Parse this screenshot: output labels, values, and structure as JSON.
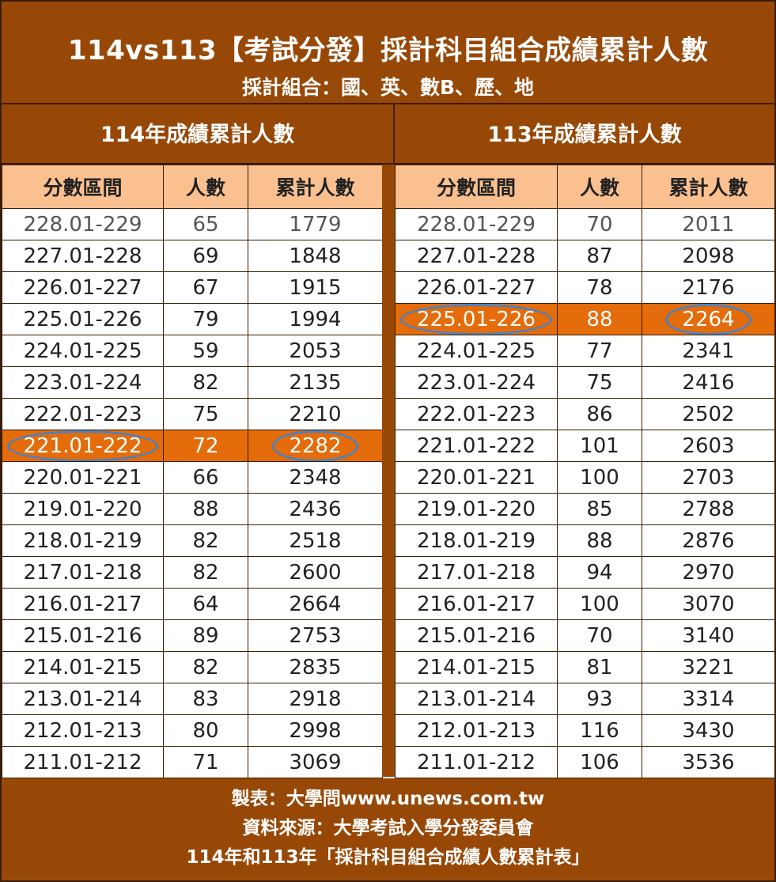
{
  "header": {
    "title": "114vs113【考試分發】採計科目組合成績累計人數",
    "subtitle": "採計組合：國、英、數B、歷、地"
  },
  "columns": [
    "分數區間",
    "人數",
    "累計人數"
  ],
  "tables": [
    {
      "year_heading": "114年成績累計人數",
      "highlight_index": 7,
      "rows": [
        [
          "228.01-229",
          "65",
          "1779"
        ],
        [
          "227.01-228",
          "69",
          "1848"
        ],
        [
          "226.01-227",
          "67",
          "1915"
        ],
        [
          "225.01-226",
          "79",
          "1994"
        ],
        [
          "224.01-225",
          "59",
          "2053"
        ],
        [
          "223.01-224",
          "82",
          "2135"
        ],
        [
          "222.01-223",
          "75",
          "2210"
        ],
        [
          "221.01-222",
          "72",
          "2282"
        ],
        [
          "220.01-221",
          "66",
          "2348"
        ],
        [
          "219.01-220",
          "88",
          "2436"
        ],
        [
          "218.01-219",
          "82",
          "2518"
        ],
        [
          "217.01-218",
          "82",
          "2600"
        ],
        [
          "216.01-217",
          "64",
          "2664"
        ],
        [
          "215.01-216",
          "89",
          "2753"
        ],
        [
          "214.01-215",
          "82",
          "2835"
        ],
        [
          "213.01-214",
          "83",
          "2918"
        ],
        [
          "212.01-213",
          "80",
          "2998"
        ],
        [
          "211.01-212",
          "71",
          "3069"
        ]
      ]
    },
    {
      "year_heading": "113年成績累計人數",
      "highlight_index": 3,
      "rows": [
        [
          "228.01-229",
          "70",
          "2011"
        ],
        [
          "227.01-228",
          "87",
          "2098"
        ],
        [
          "226.01-227",
          "78",
          "2176"
        ],
        [
          "225.01-226",
          "88",
          "2264"
        ],
        [
          "224.01-225",
          "77",
          "2341"
        ],
        [
          "223.01-224",
          "75",
          "2416"
        ],
        [
          "222.01-223",
          "86",
          "2502"
        ],
        [
          "221.01-222",
          "101",
          "2603"
        ],
        [
          "220.01-221",
          "100",
          "2703"
        ],
        [
          "219.01-220",
          "85",
          "2788"
        ],
        [
          "218.01-219",
          "88",
          "2876"
        ],
        [
          "217.01-218",
          "94",
          "2970"
        ],
        [
          "216.01-217",
          "100",
          "3070"
        ],
        [
          "215.01-216",
          "70",
          "3140"
        ],
        [
          "214.01-215",
          "81",
          "3221"
        ],
        [
          "213.01-214",
          "93",
          "3314"
        ],
        [
          "212.01-213",
          "116",
          "3430"
        ],
        [
          "211.01-212",
          "106",
          "3536"
        ]
      ]
    }
  ],
  "footer": {
    "line1": "製表：大學問www.unews.com.tw",
    "line2": "資料來源：大學考試入學分發委員會",
    "line3": "114年和113年「採計科目組合成績人數累計表」"
  },
  "colors": {
    "frame_brown": "#974807",
    "header_peach": "#fac090",
    "highlight_orange": "#e46c0a",
    "circle_blue": "#4f81bd"
  }
}
